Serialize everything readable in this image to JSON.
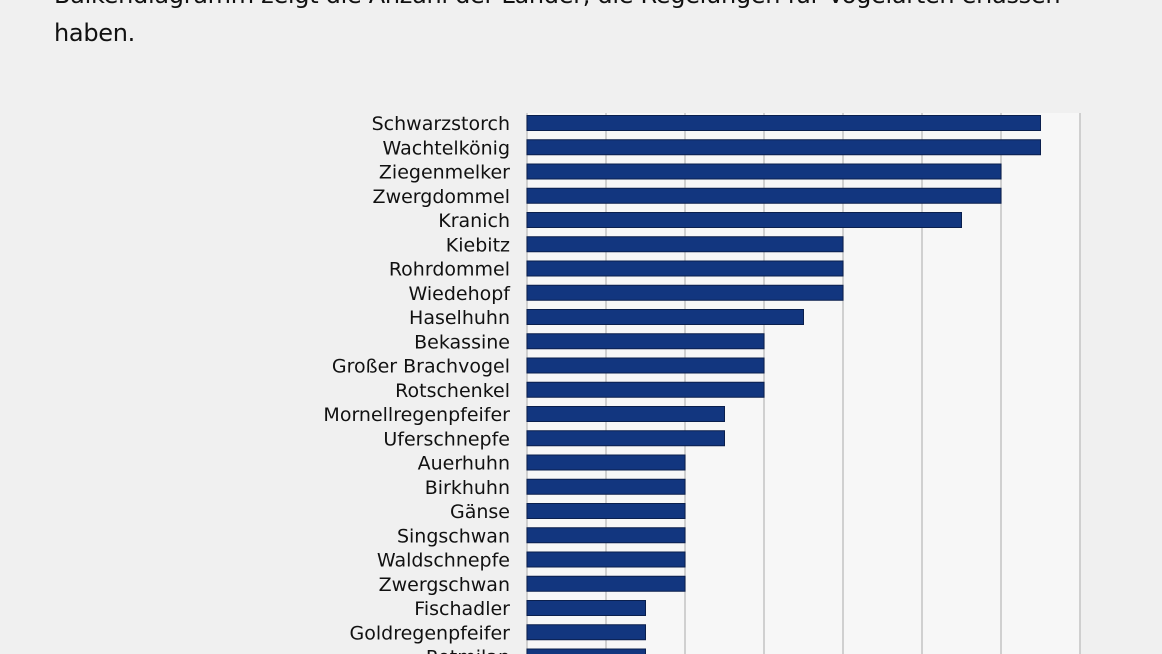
{
  "intro_text": "Balkendiagramm zeigt die Anzahl der Länder, die Regelungen für Vogelarten erlassen haben.",
  "chart_data": {
    "type": "bar",
    "orientation": "horizontal",
    "categories": [
      "Schwarzstorch",
      "Wachtelkönig",
      "Ziegenmelker",
      "Zwergdommel",
      "Kranich",
      "Kiebitz",
      "Rohrdommel",
      "Wiedehopf",
      "Haselhuhn",
      "Bekassine",
      "Großer Brachvogel",
      "Rotschenkel",
      "Mornellregenpfeifer",
      "Uferschnepfe",
      "Auerhuhn",
      "Birkhuhn",
      "Gänse",
      "Singschwan",
      "Waldschnepfe",
      "Zwergschwan",
      "Fischadler",
      "Goldregenpfeifer",
      "Rotmilan"
    ],
    "values": [
      13,
      13,
      12,
      12,
      11,
      8,
      8,
      8,
      7,
      6,
      6,
      6,
      5,
      5,
      4,
      4,
      4,
      4,
      4,
      4,
      3,
      3,
      3
    ],
    "xlim": [
      0,
      14
    ],
    "grid_step": 2,
    "grid": true,
    "bar_color": "#12367f",
    "title": "",
    "xlabel": "",
    "ylabel": ""
  }
}
